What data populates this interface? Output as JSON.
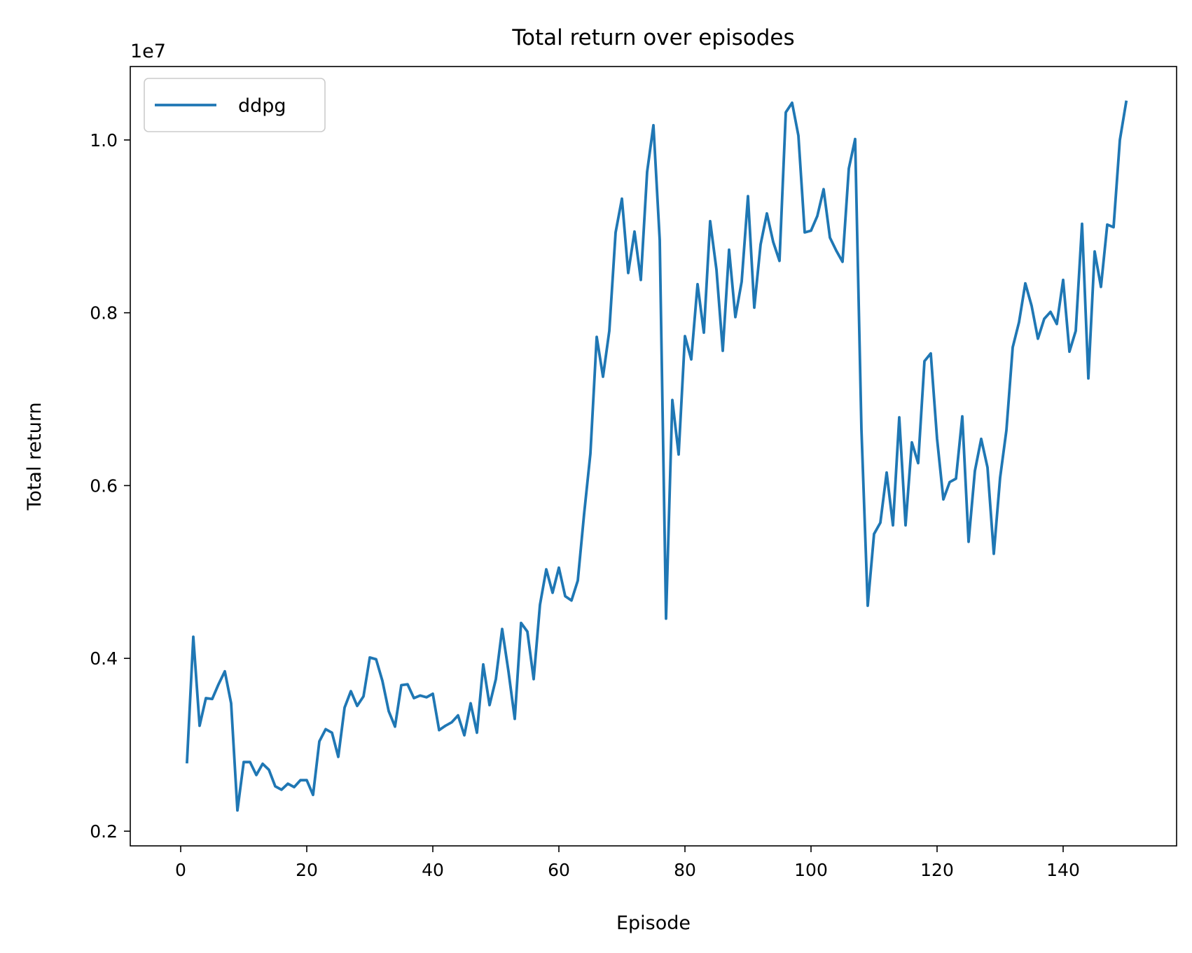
{
  "chart_data": {
    "type": "line",
    "title": "Total return over episodes",
    "xlabel": "Episode",
    "ylabel": "Total return",
    "y_scale_label": "1e7",
    "y_scale": 10000000,
    "xlim": [
      -8,
      158
    ],
    "ylim": [
      0.183,
      1.085
    ],
    "xticks": [
      0,
      20,
      40,
      60,
      80,
      100,
      120,
      140
    ],
    "yticks": [
      0.2,
      0.4,
      0.6,
      0.8,
      1.0
    ],
    "ytick_labels": [
      "0.2",
      "0.4",
      "0.6",
      "0.8",
      "1.0"
    ],
    "grid": false,
    "legend": "top-left",
    "series_color": "#1f77b4",
    "series": [
      {
        "name": "ddpg",
        "x": [
          1,
          2,
          3,
          4,
          5,
          6,
          7,
          8,
          9,
          10,
          11,
          12,
          13,
          14,
          15,
          16,
          17,
          18,
          19,
          20,
          21,
          22,
          23,
          24,
          25,
          26,
          27,
          28,
          29,
          30,
          31,
          32,
          33,
          34,
          35,
          36,
          37,
          38,
          39,
          40,
          41,
          42,
          43,
          44,
          45,
          46,
          47,
          48,
          49,
          50,
          51,
          52,
          53,
          54,
          55,
          56,
          57,
          58,
          59,
          60,
          61,
          62,
          63,
          64,
          65,
          66,
          67,
          68,
          69,
          70,
          71,
          72,
          73,
          74,
          75,
          76,
          77,
          78,
          79,
          80,
          81,
          82,
          83,
          84,
          85,
          86,
          87,
          88,
          89,
          90,
          91,
          92,
          93,
          94,
          95,
          96,
          97,
          98,
          99,
          100,
          101,
          102,
          103,
          104,
          105,
          106,
          107,
          108,
          109,
          110,
          111,
          112,
          113,
          114,
          115,
          116,
          117,
          118,
          119,
          120,
          121,
          122,
          123,
          124,
          125,
          126,
          127,
          128,
          129,
          130,
          131,
          132,
          133,
          134,
          135,
          136,
          137,
          138,
          139,
          140,
          141,
          142,
          143,
          144,
          145,
          146,
          147,
          148,
          149,
          150
        ],
        "values": [
          0.28,
          0.425,
          0.322,
          0.354,
          0.353,
          0.37,
          0.385,
          0.348,
          0.224,
          0.28,
          0.28,
          0.265,
          0.278,
          0.271,
          0.252,
          0.248,
          0.255,
          0.251,
          0.259,
          0.259,
          0.242,
          0.304,
          0.318,
          0.314,
          0.286,
          0.343,
          0.362,
          0.345,
          0.356,
          0.401,
          0.399,
          0.374,
          0.339,
          0.321,
          0.369,
          0.37,
          0.354,
          0.357,
          0.355,
          0.359,
          0.317,
          0.322,
          0.326,
          0.334,
          0.311,
          0.348,
          0.314,
          0.393,
          0.346,
          0.376,
          0.434,
          0.385,
          0.33,
          0.441,
          0.431,
          0.376,
          0.462,
          0.503,
          0.476,
          0.505,
          0.472,
          0.467,
          0.49,
          0.567,
          0.637,
          0.772,
          0.726,
          0.779,
          0.893,
          0.932,
          0.846,
          0.894,
          0.838,
          0.963,
          1.017,
          0.884,
          0.446,
          0.699,
          0.636,
          0.773,
          0.746,
          0.833,
          0.777,
          0.906,
          0.85,
          0.756,
          0.873,
          0.795,
          0.836,
          0.935,
          0.806,
          0.879,
          0.915,
          0.882,
          0.86,
          1.032,
          1.043,
          1.005,
          0.893,
          0.895,
          0.912,
          0.943,
          0.887,
          0.872,
          0.859,
          0.967,
          1.001,
          0.665,
          0.461,
          0.544,
          0.557,
          0.615,
          0.554,
          0.679,
          0.554,
          0.65,
          0.626,
          0.744,
          0.753,
          0.654,
          0.584,
          0.604,
          0.608,
          0.68,
          0.535,
          0.617,
          0.654,
          0.621,
          0.521,
          0.609,
          0.664,
          0.76,
          0.789,
          0.834,
          0.808,
          0.77,
          0.793,
          0.801,
          0.787,
          0.838,
          0.755,
          0.779,
          0.903,
          0.724,
          0.871,
          0.83,
          0.902,
          0.899,
          1.0,
          1.044
        ]
      }
    ]
  }
}
